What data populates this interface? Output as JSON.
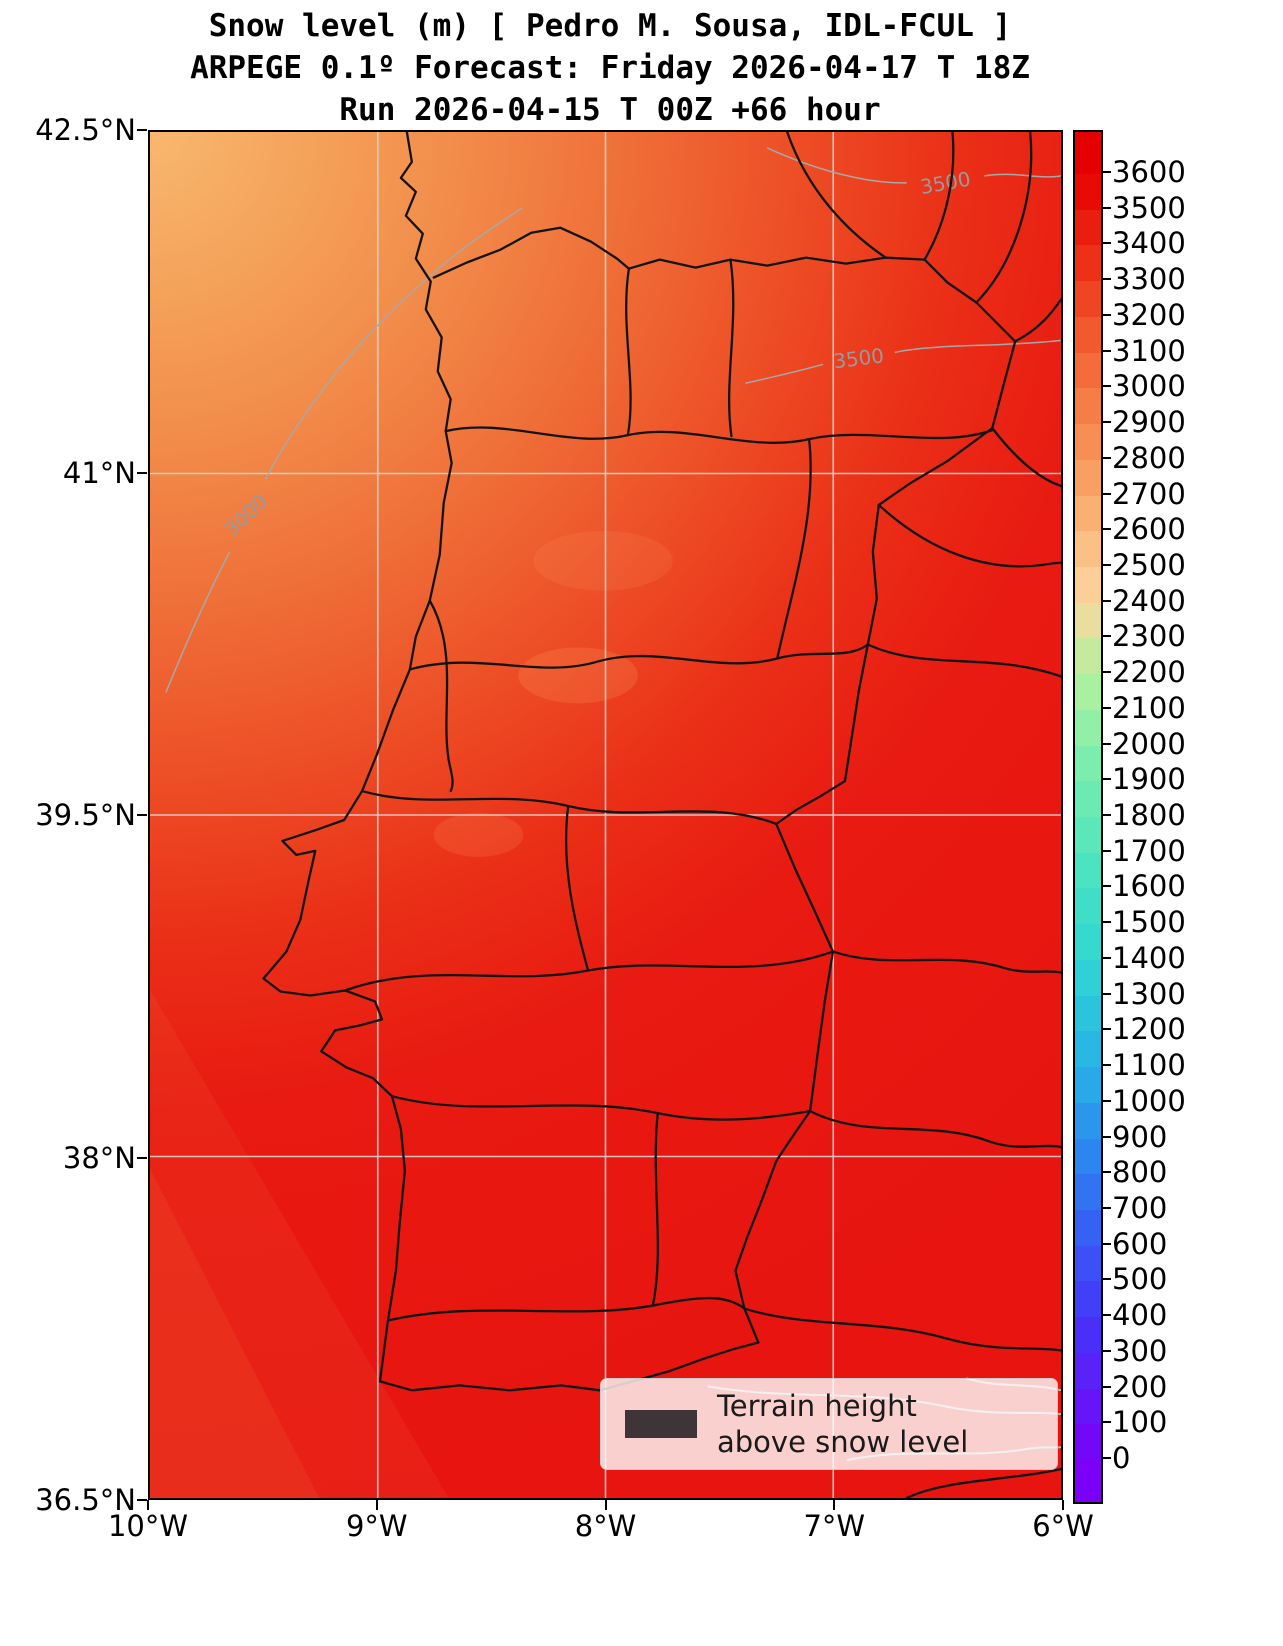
{
  "title": {
    "line1": "Snow level (m) [ Pedro M. Sousa, IDL-FCUL ]",
    "line2": "ARPEGE 0.1º Forecast: Friday 2026-04-17 T 18Z",
    "line3": "Run 2026-04-15 T 00Z +66 hour"
  },
  "axes": {
    "y_ticks": [
      "42.5°N",
      "41°N",
      "39.5°N",
      "38°N",
      "36.5°N"
    ],
    "x_ticks": [
      "10°W",
      "9°W",
      "8°W",
      "7°W",
      "6°W"
    ]
  },
  "colorbar": {
    "tick_labels": [
      "3600",
      "3500",
      "3400",
      "3300",
      "3200",
      "3100",
      "3000",
      "2900",
      "2800",
      "2700",
      "2600",
      "2500",
      "2400",
      "2300",
      "2200",
      "2100",
      "2000",
      "1900",
      "1800",
      "1700",
      "1600",
      "1500",
      "1400",
      "1300",
      "1200",
      "1100",
      "1000",
      "900",
      "800",
      "700",
      "600",
      "500",
      "400",
      "300",
      "200",
      "100",
      "0"
    ],
    "over_color": "#e50000",
    "under_color": "#7a00f8",
    "stops": [
      {
        "v": 0,
        "c": "#7a00f8"
      },
      {
        "v": 400,
        "c": "#4436f8"
      },
      {
        "v": 800,
        "c": "#2e7cf0"
      },
      {
        "v": 1100,
        "c": "#28b2e8"
      },
      {
        "v": 1400,
        "c": "#30d6d2"
      },
      {
        "v": 1700,
        "c": "#52e6bc"
      },
      {
        "v": 2000,
        "c": "#86eeaa"
      },
      {
        "v": 2200,
        "c": "#b4f09c"
      },
      {
        "v": 2400,
        "c": "#fbd7a0"
      },
      {
        "v": 2700,
        "c": "#f9a869"
      },
      {
        "v": 3000,
        "c": "#f4763f"
      },
      {
        "v": 3300,
        "c": "#ee3b1d"
      },
      {
        "v": 3600,
        "c": "#e50000"
      }
    ]
  },
  "contours": {
    "labels": [
      "3500",
      "3500",
      "3000"
    ]
  },
  "legend": {
    "line1": "Terrain height",
    "line2": "above snow level",
    "swatch_color": "#3d3537"
  },
  "map_colors": {
    "dominant_red": "#e81410",
    "northwest_orange": "#f5a55d"
  },
  "chart_data": {
    "type": "heatmap",
    "title": "Snow level (m) [ Pedro M. Sousa, IDL-FCUL ]",
    "subtitle": "ARPEGE 0.1º Forecast: Friday 2026-04-17 T 18Z",
    "run_info": "Run 2026-04-15 T 00Z +66 hour",
    "variable": "Snow level",
    "units": "m",
    "x_axis": {
      "tick_labels": [
        "10°W",
        "9°W",
        "8°W",
        "7°W",
        "6°W"
      ]
    },
    "y_axis": {
      "tick_labels": [
        "42.5°N",
        "41°N",
        "39.5°N",
        "38°N",
        "36.5°N"
      ]
    },
    "colorbar": {
      "min": 0,
      "max": 3600,
      "step": 100,
      "extend": "both"
    },
    "contour_line_labels": [
      3500,
      3500,
      3000
    ],
    "legend_entries": [
      "Terrain height above snow level"
    ],
    "grid": true,
    "notes": "Filled snow-level field is mostly 3100-3600 m (red) over Iberia, grading to ~2800-3000 m (orange) toward the northwest ocean corner"
  }
}
